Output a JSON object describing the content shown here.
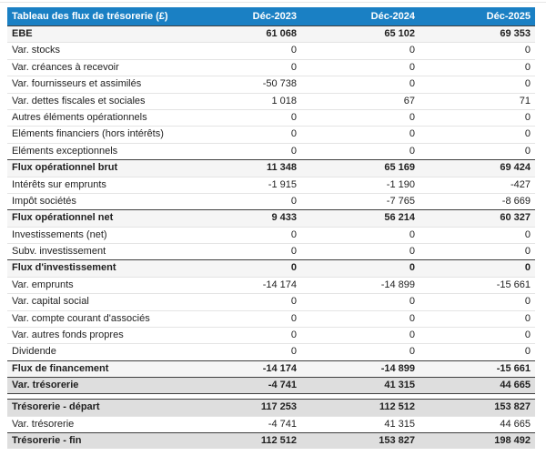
{
  "accent_color": "#1a80c4",
  "section_row_bg": "#f5f5f5",
  "total_row_bg": "#dedede",
  "chart_data": {
    "type": "table",
    "title": "Tableau des flux de trésorerie (£)",
    "columns": [
      "Déc-2023",
      "Déc-2024",
      "Déc-2025"
    ],
    "rows": [
      {
        "label": "EBE",
        "values": [
          "61 068",
          "65 102",
          "69 353"
        ],
        "style": "section"
      },
      {
        "label": "Var. stocks",
        "values": [
          "0",
          "0",
          "0"
        ],
        "style": "normal"
      },
      {
        "label": "Var. créances à recevoir",
        "values": [
          "0",
          "0",
          "0"
        ],
        "style": "normal"
      },
      {
        "label": "Var. fournisseurs et assimilés",
        "values": [
          "-50 738",
          "0",
          "0"
        ],
        "style": "normal"
      },
      {
        "label": "Var. dettes fiscales et sociales",
        "values": [
          "1 018",
          "67",
          "71"
        ],
        "style": "normal"
      },
      {
        "label": "Autres éléments opérationnels",
        "values": [
          "0",
          "0",
          "0"
        ],
        "style": "normal"
      },
      {
        "label": "Eléments financiers (hors intérêts)",
        "values": [
          "0",
          "0",
          "0"
        ],
        "style": "normal"
      },
      {
        "label": "Eléments exceptionnels",
        "values": [
          "0",
          "0",
          "0"
        ],
        "style": "normal"
      },
      {
        "label": "Flux opérationnel brut",
        "values": [
          "11 348",
          "65 169",
          "69 424"
        ],
        "style": "section"
      },
      {
        "label": "Intérêts sur emprunts",
        "values": [
          "-1 915",
          "-1 190",
          "-427"
        ],
        "style": "normal"
      },
      {
        "label": "Impôt sociétés",
        "values": [
          "0",
          "-7 765",
          "-8 669"
        ],
        "style": "normal"
      },
      {
        "label": "Flux opérationnel net",
        "values": [
          "9 433",
          "56 214",
          "60 327"
        ],
        "style": "section"
      },
      {
        "label": "Investissements (net)",
        "values": [
          "0",
          "0",
          "0"
        ],
        "style": "normal"
      },
      {
        "label": "Subv. investissement",
        "values": [
          "0",
          "0",
          "0"
        ],
        "style": "normal"
      },
      {
        "label": "Flux d'investissement",
        "values": [
          "0",
          "0",
          "0"
        ],
        "style": "section"
      },
      {
        "label": "Var. emprunts",
        "values": [
          "-14 174",
          "-14 899",
          "-15 661"
        ],
        "style": "normal"
      },
      {
        "label": "Var. capital social",
        "values": [
          "0",
          "0",
          "0"
        ],
        "style": "normal"
      },
      {
        "label": "Var. compte courant d'associés",
        "values": [
          "0",
          "0",
          "0"
        ],
        "style": "normal"
      },
      {
        "label": "Var. autres fonds propres",
        "values": [
          "0",
          "0",
          "0"
        ],
        "style": "normal"
      },
      {
        "label": "Dividende",
        "values": [
          "0",
          "0",
          "0"
        ],
        "style": "normal"
      },
      {
        "label": "Flux de financement",
        "values": [
          "-14 174",
          "-14 899",
          "-15 661"
        ],
        "style": "section"
      },
      {
        "label": "Var. trésorerie",
        "values": [
          "-4 741",
          "41 315",
          "44 665"
        ],
        "style": "total-end"
      },
      {
        "label": "",
        "values": [],
        "style": "spacer"
      },
      {
        "label": "Trésorerie - départ",
        "values": [
          "117 253",
          "112 512",
          "153 827"
        ],
        "style": "total"
      },
      {
        "label": "Var. trésorerie",
        "values": [
          "-4 741",
          "41 315",
          "44 665"
        ],
        "style": "normal"
      },
      {
        "label": "Trésorerie - fin",
        "values": [
          "112 512",
          "153 827",
          "198 492"
        ],
        "style": "total"
      }
    ]
  }
}
